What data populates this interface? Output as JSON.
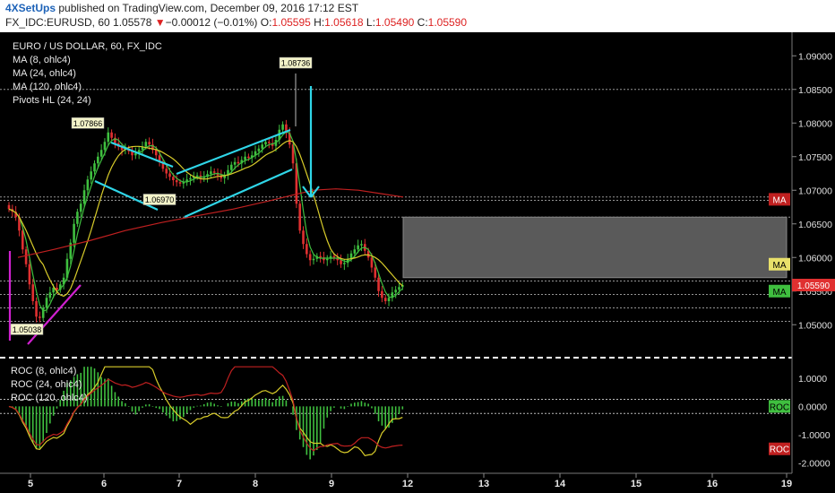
{
  "header": {
    "publisher": "4XSetUps",
    "published_text": "published on TradingView.com, December 09, 2016 17:12 EST",
    "symbol_line": {
      "symbol": "FX_IDC:EURUSD, 60",
      "last": "1.05578",
      "change_arrow": "▼",
      "change": "−0.00012 (−0.01%)",
      "o_label": "O:",
      "o": "1.05595",
      "h_label": "H:",
      "h": "1.05618",
      "l_label": "L:",
      "l": "1.05490",
      "c_label": "C:",
      "c": "1.05590"
    }
  },
  "colors": {
    "background": "#000000",
    "up_candle": "#3fbf3f",
    "down_candle": "#e03030",
    "ma8": "#3fbf3f",
    "ma24": "#d8cc2a",
    "ma120": "#c02020",
    "annotation_cyan": "#2fd6e8",
    "annotation_magenta": "#d020d0",
    "zone_fill": "#5a5a5a"
  },
  "legend": {
    "title": "EURO / US DOLLAR, 60, FX_IDC",
    "items": [
      "MA (8, ohlc4)",
      "MA (24, ohlc4)",
      "MA (120, ohlc4)",
      "Pivots HL (24, 24)"
    ]
  },
  "roc_legend": {
    "items": [
      "ROC (8, ohlc4)",
      "ROC (24, ohlc4)",
      "ROC (120, ohlc4)"
    ]
  },
  "chart_data": [
    {
      "type": "candlestick",
      "title": "EURO / US DOLLAR, 60, FX_IDC",
      "x_ticks": [
        "5",
        "6",
        "7",
        "8",
        "9",
        "12",
        "13",
        "14",
        "15",
        "16",
        "19"
      ],
      "y_ticks": [
        "1.09000",
        "1.08500",
        "1.08000",
        "1.07500",
        "1.07000",
        "1.06500",
        "1.06000",
        "1.05500",
        "1.05000"
      ],
      "ylim": [
        1.0455,
        1.0935
      ],
      "last_price_label": "1.05590",
      "pivot_labels": [
        {
          "text": "1.07866",
          "value": 1.07866
        },
        {
          "text": "1.08736",
          "value": 1.08736
        },
        {
          "text": "1.06970",
          "value": 1.0697
        },
        {
          "text": "1.05038",
          "value": 1.05038
        }
      ],
      "series": [
        {
          "name": "MA (8, ohlc4)",
          "axis_tag": "MA"
        },
        {
          "name": "MA (24, ohlc4)",
          "axis_tag": "MA"
        },
        {
          "name": "MA (120, ohlc4)",
          "axis_tag": "MA"
        }
      ],
      "close": [
        1.0672,
        1.0668,
        1.066,
        1.064,
        1.0612,
        1.059,
        1.056,
        1.0535,
        1.0512,
        1.051,
        1.0525,
        1.054,
        1.0548,
        1.0555,
        1.0552,
        1.056,
        1.057,
        1.0598,
        1.0622,
        1.065,
        1.0668,
        1.068,
        1.07,
        1.0716,
        1.0728,
        1.074,
        1.075,
        1.076,
        1.0772,
        1.0786,
        1.0778,
        1.077,
        1.0765,
        1.076,
        1.0762,
        1.0758,
        1.0752,
        1.0755,
        1.076,
        1.0765,
        1.0772,
        1.0768,
        1.076,
        1.0752,
        1.0742,
        1.0732,
        1.0725,
        1.072,
        1.0715,
        1.0712,
        1.071,
        1.0712,
        1.0716,
        1.0718,
        1.072,
        1.0722,
        1.0718,
        1.072,
        1.0724,
        1.0728,
        1.0726,
        1.0722,
        1.0718,
        1.0722,
        1.073,
        1.0738,
        1.0742,
        1.074,
        1.0745,
        1.075,
        1.0748,
        1.0752,
        1.0758,
        1.0762,
        1.0768,
        1.0772,
        1.077,
        1.0766,
        1.0775,
        1.079,
        1.0798,
        1.0785,
        1.0768,
        1.074,
        1.068,
        1.064,
        1.062,
        1.0605,
        1.0596,
        1.0598,
        1.0602,
        1.06,
        1.0596,
        1.0598,
        1.0602,
        1.06,
        1.0596,
        1.059,
        1.0592,
        1.0598,
        1.0606,
        1.0612,
        1.0618,
        1.062,
        1.061,
        1.06,
        1.0585,
        1.057,
        1.055,
        1.054,
        1.0535,
        1.054,
        1.0548,
        1.0552,
        1.0556,
        1.0559
      ]
    },
    {
      "type": "line",
      "title": "ROC",
      "y_ticks": [
        "1.0000",
        "0.0000",
        "-1.0000",
        "-2.0000"
      ],
      "ylim": [
        -2.3,
        1.5
      ],
      "series": [
        {
          "name": "ROC (8, ohlc4)",
          "axis_tag": "ROC"
        },
        {
          "name": "ROC (24, ohlc4)",
          "axis_tag": "ROC"
        },
        {
          "name": "ROC (120, ohlc4)",
          "axis_tag": "ROC"
        }
      ]
    }
  ]
}
